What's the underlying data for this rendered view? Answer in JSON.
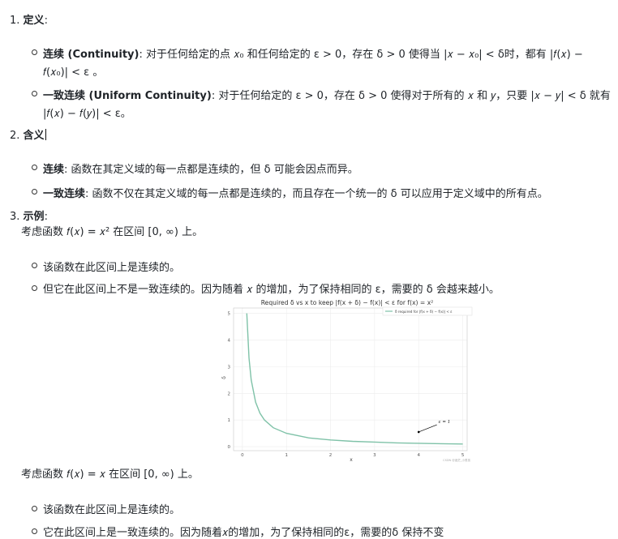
{
  "sections": [
    {
      "num": "1.",
      "title": "定义",
      "colon": ":"
    },
    {
      "num": "2.",
      "title": "含义",
      "colon": ""
    },
    {
      "num": "3.",
      "title": "示例",
      "colon": ":"
    }
  ],
  "def": {
    "continuity_term": "连续 (Continuity)",
    "continuity_line1": "对于任何给定的点 𝑥₀ 和任何给定的 ε > 0，存在 δ > 0 使得当 |𝑥 − 𝑥₀| < δ时，都有 |𝑓(𝑥) −",
    "continuity_line2": "𝑓(𝑥₀)| < ε 。",
    "uniform_term": "一致连续 (Uniform Continuity)",
    "uniform_line1": "对于任何给定的 ε > 0，存在 δ > 0 使得对于所有的 𝑥 和 𝑦，只要 |𝑥 − 𝑦| < δ 就有",
    "uniform_line2": "|𝑓(𝑥) − 𝑓(𝑦)| < ε。"
  },
  "meaning": {
    "continuity_term": "连续",
    "continuity_text": ": 函数在其定义域的每一点都是连续的，但 δ 可能会因点而异。",
    "uniform_term": "一致连续",
    "uniform_text": ": 函数不仅在其定义域的每一点都是连续的，而且存在一个统一的 δ 可以应用于定义域中的所有点。"
  },
  "example": {
    "intro1": "考虑函数 𝑓(𝑥) = 𝑥² 在区间 [0, ∞) 上。",
    "b1": "该函数在此区间上是连续的。",
    "b2": "但它在此区间上不是一致连续的。因为随着 𝑥 的增加，为了保持相同的 ε，需要的 δ 会越来越小。",
    "intro2": "考虑函数 𝑓(𝑥) = 𝑥 在区间 [0, ∞) 上。",
    "b3": "该函数在此区间上是连续的。",
    "b4": "它在此区间上是一致连续的。因为随着𝑥的增加，为了保持相同的ε，需要的δ 保持不变"
  },
  "chart_data": {
    "type": "line",
    "title": "Required δ vs x to keep |f(x + δ) − f(x)| < ε for f(x) = x²",
    "xlabel": "x",
    "ylabel": "δ",
    "xlim": [
      -0.2,
      5.1
    ],
    "ylim": [
      -0.15,
      5.2
    ],
    "xticks": [
      "0",
      "1",
      "2",
      "3",
      "4",
      "5"
    ],
    "yticks": [
      "0",
      "1",
      "2",
      "3",
      "4",
      "5"
    ],
    "grid": true,
    "legend_position": "top-right",
    "series": [
      {
        "name": "δ required for |f(x + δ) − f(x)| < ε",
        "color": "#7fc2a8",
        "x": [
          0.1,
          0.15,
          0.2,
          0.3,
          0.4,
          0.5,
          0.7,
          1.0,
          1.5,
          2.0,
          2.5,
          3.0,
          3.5,
          4.0,
          4.5,
          5.0
        ],
        "y": [
          5.0,
          3.33,
          2.5,
          1.67,
          1.25,
          1.0,
          0.71,
          0.5,
          0.33,
          0.25,
          0.2,
          0.17,
          0.14,
          0.125,
          0.11,
          0.1
        ]
      }
    ],
    "annotation": {
      "text": "ε = 1"
    },
    "watermark": "CSDN @迷茫_小男孩"
  }
}
